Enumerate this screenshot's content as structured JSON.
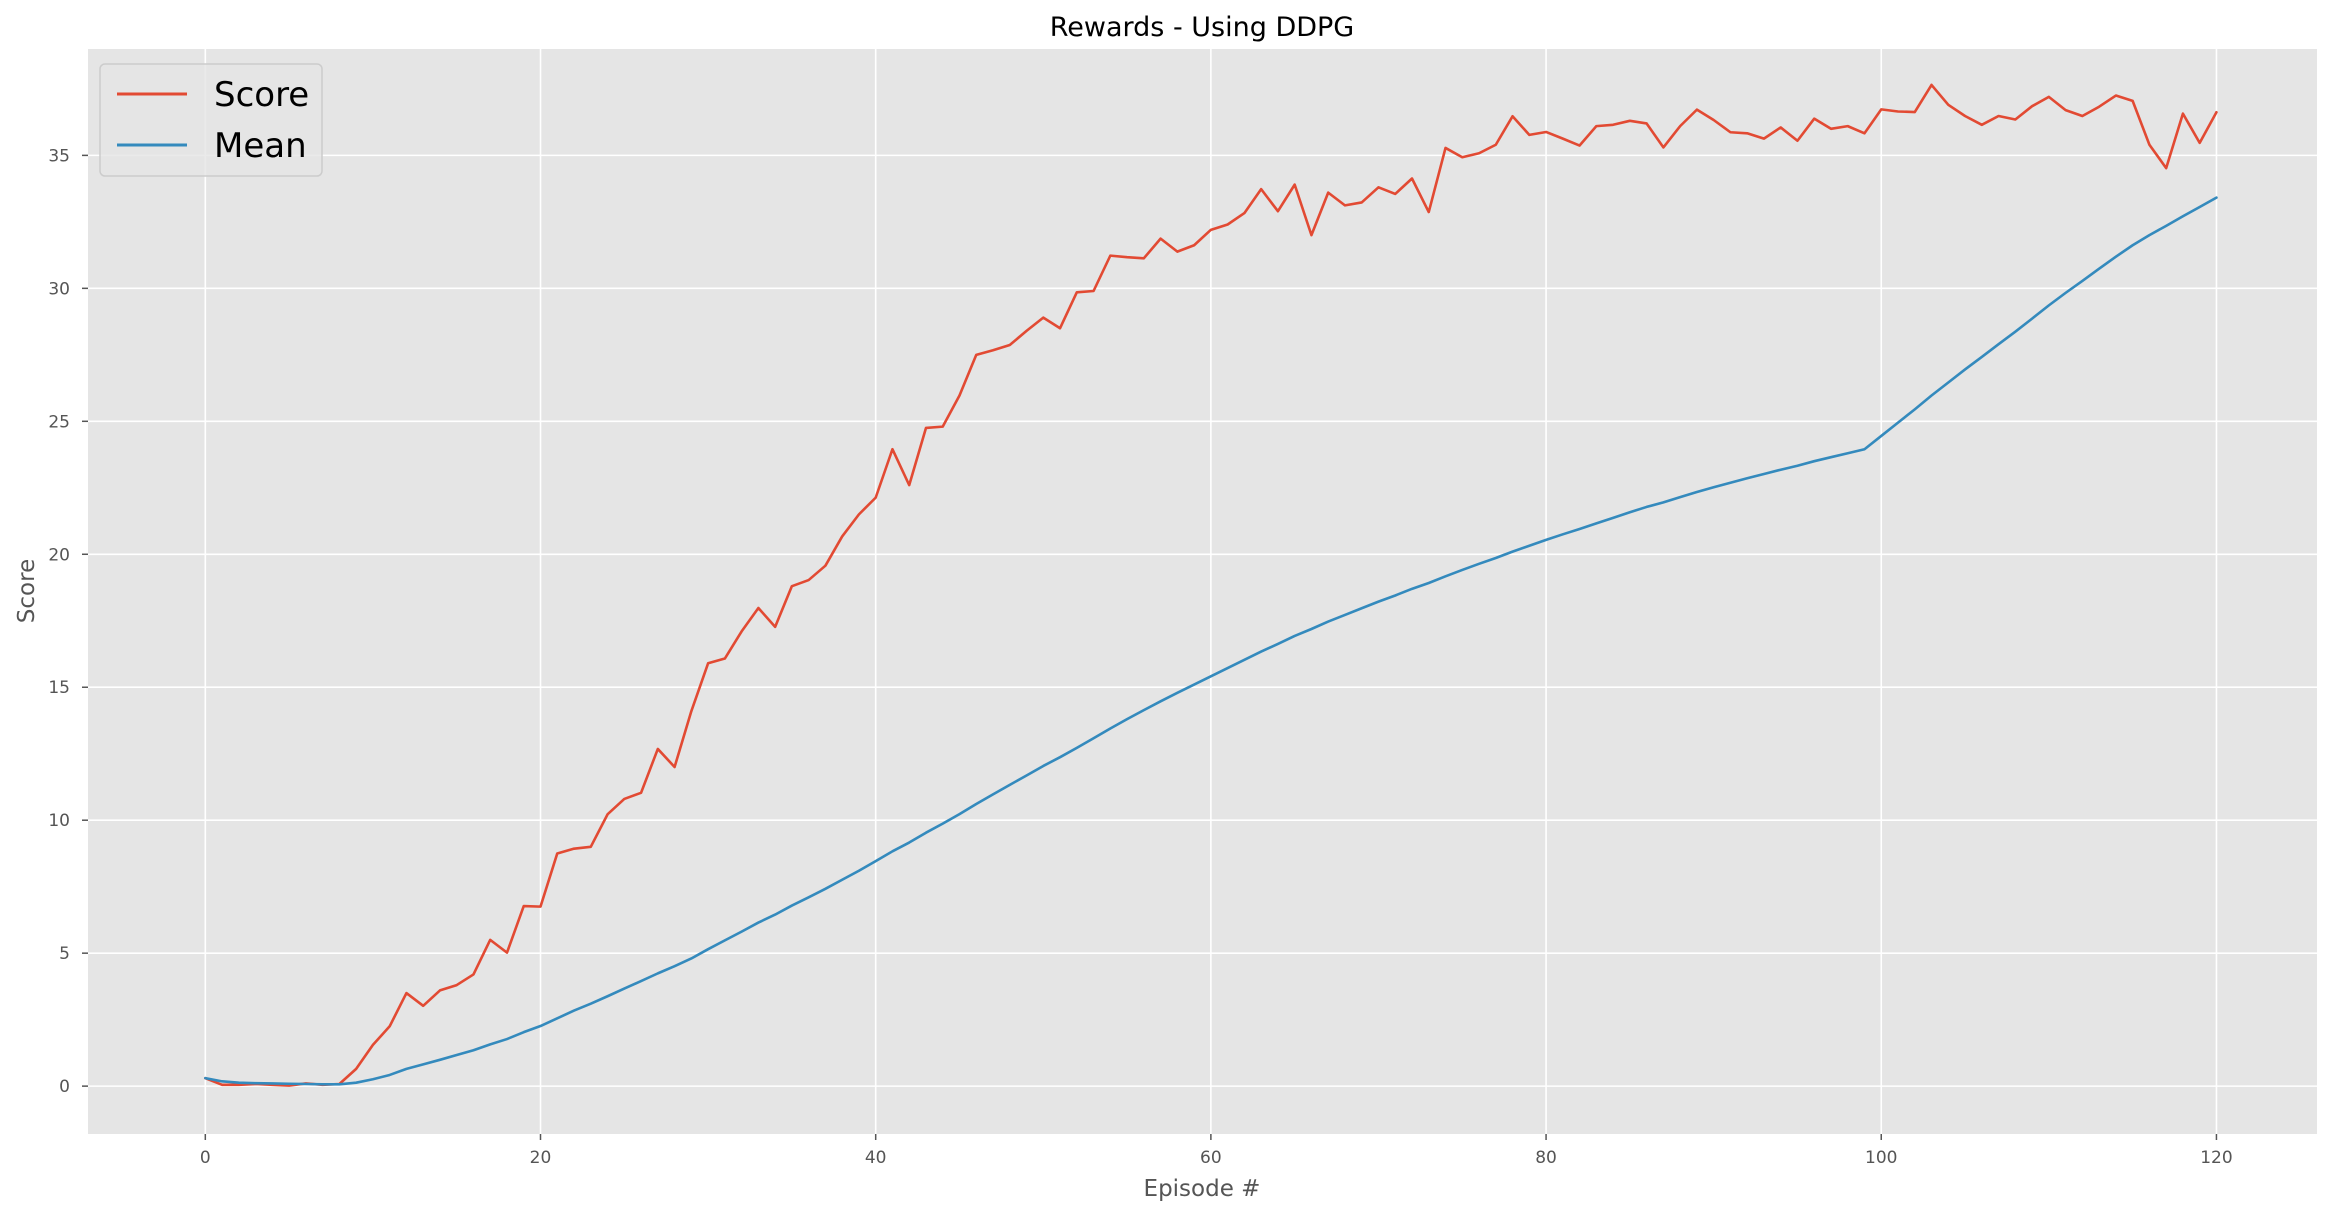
{
  "chart_data": {
    "type": "line",
    "title": "Rewards - Using DDPG",
    "xlabel": "Episode #",
    "ylabel": "Score",
    "xlim": [
      -7,
      126
    ],
    "ylim": [
      -1.8,
      39
    ],
    "xticks": [
      0,
      20,
      40,
      60,
      80,
      100,
      120
    ],
    "yticks": [
      0,
      5,
      10,
      15,
      20,
      25,
      30,
      35
    ],
    "grid": true,
    "legend_position": "top-left",
    "colors": {
      "background": "#e5e5e5",
      "grid": "#ffffff",
      "score": "#e24a33",
      "mean": "#348abd"
    },
    "series": [
      {
        "name": "Score",
        "color": "#e24a33",
        "x_start": 0,
        "values": [
          0.3,
          0.05,
          0.05,
          0.08,
          0.05,
          0.02,
          0.1,
          0.05,
          0.08,
          0.65,
          1.55,
          2.25,
          3.5,
          3.02,
          3.6,
          3.8,
          4.2,
          5.5,
          5.02,
          6.77,
          6.75,
          8.75,
          8.93,
          9.0,
          10.22,
          10.8,
          11.03,
          12.68,
          12.0,
          14.1,
          15.9,
          16.08,
          17.1,
          17.98,
          17.27,
          18.8,
          19.03,
          19.57,
          20.67,
          21.5,
          22.13,
          23.95,
          22.6,
          24.75,
          24.8,
          25.97,
          27.5,
          27.67,
          27.87,
          28.4,
          28.9,
          28.5,
          29.85,
          29.9,
          31.23,
          31.17,
          31.13,
          31.87,
          31.38,
          31.62,
          32.2,
          32.4,
          32.83,
          33.73,
          32.9,
          33.9,
          32.0,
          33.6,
          33.12,
          33.23,
          33.8,
          33.55,
          34.13,
          32.87,
          35.28,
          34.93,
          35.08,
          35.4,
          36.47,
          35.77,
          35.88,
          35.63,
          35.37,
          36.1,
          36.15,
          36.3,
          36.2,
          35.3,
          36.1,
          36.72,
          36.33,
          35.87,
          35.83,
          35.63,
          36.05,
          35.55,
          36.38,
          36.0,
          36.1,
          35.83,
          36.73,
          36.65,
          36.63,
          37.65,
          36.9,
          36.48,
          36.15,
          36.48,
          36.35,
          36.85,
          37.2,
          36.7,
          36.48,
          36.83,
          37.25,
          37.05,
          35.4,
          34.52,
          36.57,
          35.47,
          36.62
        ]
      },
      {
        "name": "Mean",
        "color": "#348abd",
        "x_start": 0,
        "values": [
          0.3,
          0.18,
          0.13,
          0.11,
          0.1,
          0.09,
          0.08,
          0.07,
          0.07,
          0.13,
          0.26,
          0.42,
          0.65,
          0.82,
          0.99,
          1.17,
          1.35,
          1.57,
          1.77,
          2.03,
          2.26,
          2.55,
          2.84,
          3.1,
          3.38,
          3.67,
          3.95,
          4.24,
          4.51,
          4.8,
          5.15,
          5.48,
          5.81,
          6.15,
          6.45,
          6.79,
          7.1,
          7.42,
          7.76,
          8.1,
          8.46,
          8.83,
          9.16,
          9.53,
          9.87,
          10.23,
          10.61,
          10.97,
          11.33,
          11.68,
          12.04,
          12.37,
          12.72,
          13.08,
          13.45,
          13.8,
          14.14,
          14.47,
          14.79,
          15.1,
          15.41,
          15.72,
          16.03,
          16.34,
          16.63,
          16.93,
          17.19,
          17.47,
          17.72,
          17.97,
          18.22,
          18.45,
          18.7,
          18.92,
          19.17,
          19.41,
          19.64,
          19.86,
          20.1,
          20.32,
          20.54,
          20.75,
          20.95,
          21.16,
          21.37,
          21.58,
          21.78,
          21.95,
          22.15,
          22.34,
          22.52,
          22.69,
          22.86,
          23.02,
          23.18,
          23.33,
          23.5,
          23.65,
          23.8,
          23.95,
          24.45,
          24.95,
          25.45,
          25.97,
          26.46,
          26.95,
          27.42,
          27.9,
          28.37,
          28.86,
          29.36,
          29.83,
          30.28,
          30.74,
          31.19,
          31.62,
          32.0,
          32.35,
          32.71,
          33.06,
          33.41
        ]
      }
    ]
  }
}
